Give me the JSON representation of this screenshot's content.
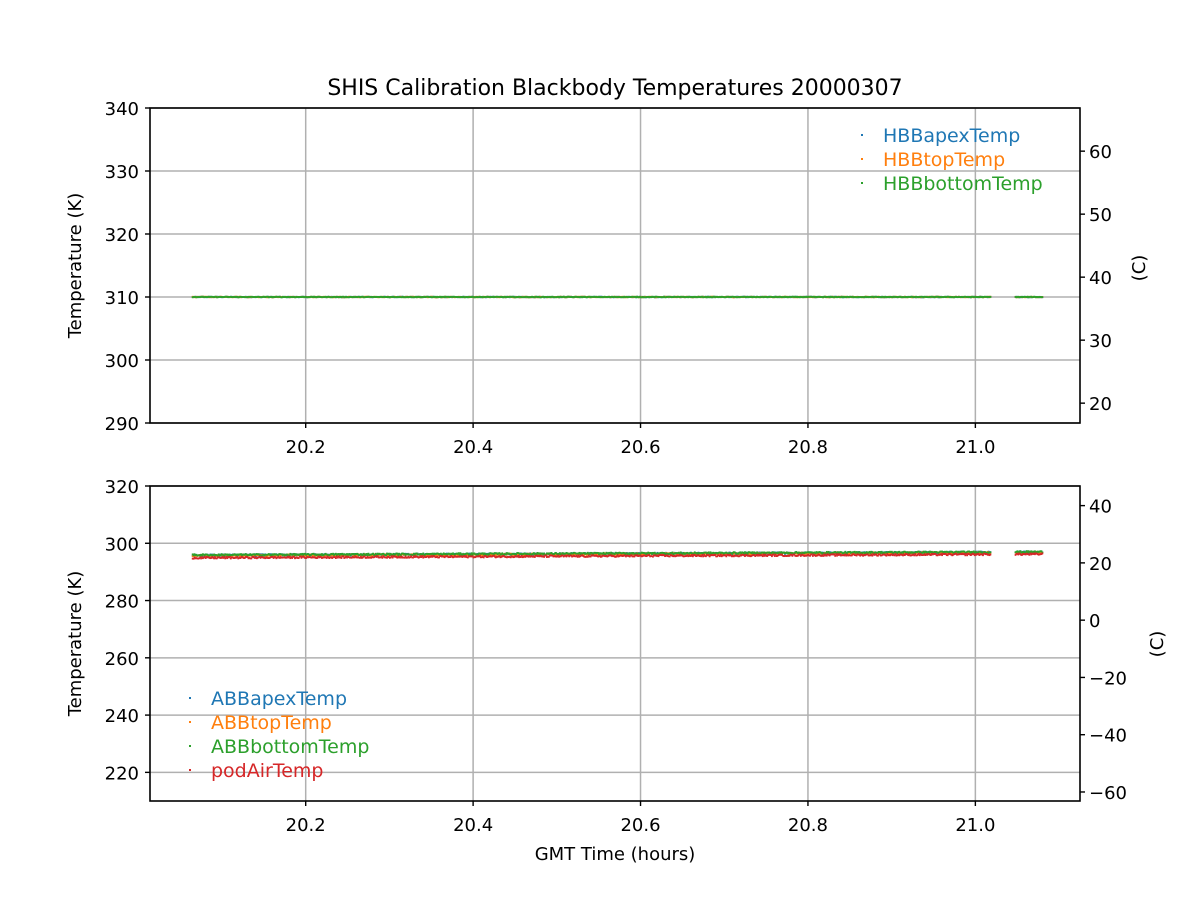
{
  "chart_data": {
    "title": "SHIS Calibration Blackbody Temperatures 20000307",
    "xlabel": "GMT Time (hours)",
    "x_tick_labels": [
      "20.2",
      "20.4",
      "20.6",
      "20.8",
      "21.0"
    ],
    "panels": [
      {
        "type": "scatter",
        "ylabel": "Temperature (K)",
        "ylabel_right": "(C)",
        "xlim": [
          20.014,
          21.125
        ],
        "ylim": [
          290,
          340
        ],
        "x_ticks": [
          20.2,
          20.4,
          20.6,
          20.8,
          21.0
        ],
        "y_ticks": [
          290,
          300,
          310,
          320,
          330,
          340
        ],
        "y_tick_labels": [
          "290",
          "300",
          "310",
          "320",
          "330",
          "340"
        ],
        "right_ticks_C": [
          20,
          30,
          40,
          50,
          60
        ],
        "right_tick_labels": [
          "20",
          "30",
          "40",
          "50",
          "60"
        ],
        "grid": true,
        "legend_position": "top-right",
        "segments": [
          [
            20.065,
            21.018
          ],
          [
            21.048,
            21.08
          ]
        ],
        "series": [
          {
            "name": "HBBapexTemp",
            "color": "#1f77b4",
            "value": 310.0,
            "noise": 0.05
          },
          {
            "name": "HBBtopTemp",
            "color": "#ff7f0e",
            "value": 310.0,
            "noise": 0.05
          },
          {
            "name": "HBBbottomTemp",
            "color": "#2ca02c",
            "value": 310.0,
            "noise": 0.05
          }
        ]
      },
      {
        "type": "scatter",
        "ylabel": "Temperature (K)",
        "ylabel_right": "(C)",
        "xlim": [
          20.014,
          21.125
        ],
        "ylim": [
          210,
          320
        ],
        "x_ticks": [
          20.2,
          20.4,
          20.6,
          20.8,
          21.0
        ],
        "y_ticks": [
          220,
          240,
          260,
          280,
          300,
          320
        ],
        "y_tick_labels": [
          "220",
          "240",
          "260",
          "280",
          "300",
          "320"
        ],
        "right_ticks_C": [
          -60,
          -40,
          -20,
          0,
          20,
          40
        ],
        "right_tick_labels": [
          "−60",
          "−40",
          "−20",
          "0",
          "20",
          "40"
        ],
        "grid": true,
        "legend_position": "bottom-left",
        "segments": [
          [
            20.065,
            21.018
          ],
          [
            21.048,
            21.08
          ]
        ],
        "series": [
          {
            "name": "ABBapexTemp",
            "color": "#1f77b4",
            "start": 295.8,
            "end": 296.9,
            "noise": 0.3
          },
          {
            "name": "ABBtopTemp",
            "color": "#ff7f0e",
            "start": 295.7,
            "end": 296.8,
            "noise": 0.3
          },
          {
            "name": "ABBbottomTemp",
            "color": "#2ca02c",
            "start": 295.9,
            "end": 297.0,
            "noise": 0.3
          },
          {
            "name": "podAirTemp",
            "color": "#d62728",
            "start": 294.9,
            "end": 296.2,
            "noise": 0.3
          }
        ]
      }
    ]
  }
}
